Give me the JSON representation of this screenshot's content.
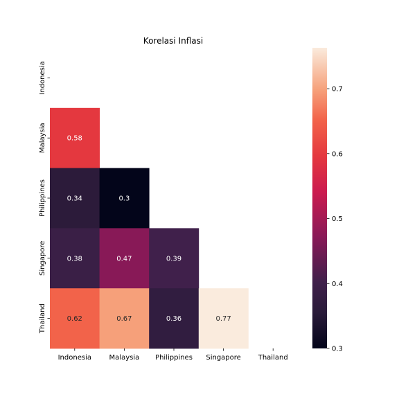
{
  "chart_data": {
    "type": "heatmap",
    "title": "Korelasi Inflasi",
    "xlabel": "",
    "ylabel": "",
    "x_categories": [
      "Indonesia",
      "Malaysia",
      "Philippines",
      "Singapore",
      "Thailand"
    ],
    "y_categories": [
      "Indonesia",
      "Malaysia",
      "Philippines",
      "Singapore",
      "Thailand"
    ],
    "mask": "upper-triangle-including-diagonal",
    "cells": [
      {
        "row": 1,
        "col": 0,
        "value": 0.58,
        "label": "0.58",
        "color": "#e4383f"
      },
      {
        "row": 2,
        "col": 0,
        "value": 0.34,
        "label": "0.34",
        "color": "#2c1b3a"
      },
      {
        "row": 2,
        "col": 1,
        "value": 0.3,
        "label": "0.3",
        "color": "#03051a"
      },
      {
        "row": 3,
        "col": 0,
        "value": 0.38,
        "label": "0.38",
        "color": "#3a1f46"
      },
      {
        "row": 3,
        "col": 1,
        "value": 0.47,
        "label": "0.47",
        "color": "#881957"
      },
      {
        "row": 3,
        "col": 2,
        "value": 0.39,
        "label": "0.39",
        "color": "#40204b"
      },
      {
        "row": 4,
        "col": 0,
        "value": 0.62,
        "label": "0.62",
        "color": "#f2634a"
      },
      {
        "row": 4,
        "col": 1,
        "value": 0.67,
        "label": "0.67",
        "color": "#f6a07a"
      },
      {
        "row": 4,
        "col": 2,
        "value": 0.36,
        "label": "0.36",
        "color": "#311d40"
      },
      {
        "row": 4,
        "col": 3,
        "value": 0.77,
        "label": "0.77",
        "color": "#faebdd"
      }
    ],
    "colorbar": {
      "colormap": "rocket",
      "min": 0.3,
      "max": 0.763,
      "ticks": [
        0.3,
        0.4,
        0.5,
        0.6,
        0.7
      ],
      "tick_labels": [
        "0.3",
        "0.4",
        "0.5",
        "0.6",
        "0.7"
      ]
    },
    "grid": false,
    "legend": "colorbar-right"
  }
}
